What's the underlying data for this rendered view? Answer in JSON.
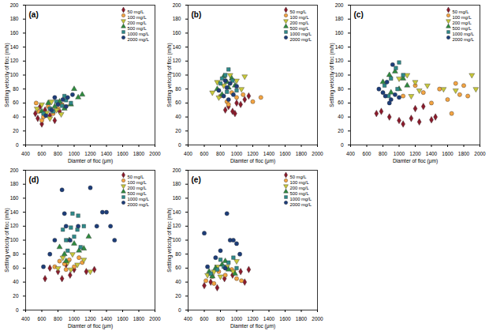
{
  "chart_data": [
    {
      "type": "scatter",
      "title": "(a)",
      "x_label": "Diamter of floc (μm)",
      "y_label": "Settling velocity of floc (m/h)",
      "xlim": [
        400,
        2000
      ],
      "ylim": [
        0,
        200
      ],
      "xticks": [
        400,
        600,
        800,
        1000,
        1200,
        1400,
        1600,
        1800,
        2000
      ],
      "yticks": [
        0,
        20,
        40,
        60,
        80,
        100,
        120,
        140,
        160,
        180,
        200
      ],
      "legend": "top-right",
      "series": [
        {
          "name": "50 mg/L",
          "color": "#8b1a2b",
          "marker": "diamond",
          "x": [
            520,
            550,
            600,
            640,
            700,
            760,
            820,
            580
          ],
          "values": [
            45,
            38,
            30,
            50,
            42,
            35,
            48,
            55
          ]
        },
        {
          "name": "100 mg/L",
          "color": "#f4a442",
          "marker": "circle",
          "x": [
            530,
            560,
            620,
            680,
            740,
            800,
            600,
            850
          ],
          "values": [
            60,
            48,
            40,
            55,
            45,
            52,
            35,
            58
          ]
        },
        {
          "name": "200 mg/L",
          "color": "#c8c83a",
          "marker": "triangle-down",
          "x": [
            540,
            600,
            660,
            720,
            780,
            840,
            900,
            700
          ],
          "values": [
            52,
            58,
            46,
            62,
            50,
            44,
            55,
            38
          ]
        },
        {
          "name": "500 mg/L",
          "color": "#2e8b3e",
          "marker": "triangle",
          "x": [
            600,
            680,
            760,
            820,
            880,
            960,
            1050,
            1100,
            1000
          ],
          "values": [
            48,
            60,
            55,
            62,
            52,
            58,
            68,
            72,
            80
          ]
        },
        {
          "name": "1000 mg/L",
          "color": "#2e8a8a",
          "marker": "square",
          "x": [
            620,
            700,
            780,
            850,
            900,
            960,
            740,
            880
          ],
          "values": [
            45,
            52,
            62,
            56,
            64,
            60,
            48,
            70
          ]
        },
        {
          "name": "2000 mg/L",
          "color": "#1c3d7a",
          "marker": "circle",
          "x": [
            650,
            720,
            800,
            860,
            920,
            980,
            760,
            900
          ],
          "values": [
            42,
            50,
            58,
            65,
            68,
            72,
            68,
            55
          ]
        }
      ]
    },
    {
      "type": "scatter",
      "title": "(b)",
      "x_label": "Diamter of floc (μm)",
      "y_label": "Settling velocity of floc (m/h)",
      "xlim": [
        400,
        2000
      ],
      "ylim": [
        0,
        200
      ],
      "xticks": [
        400,
        600,
        800,
        1000,
        1200,
        1400,
        1600,
        1800,
        2000
      ],
      "yticks": [
        0,
        20,
        40,
        60,
        80,
        100,
        120,
        140,
        160,
        180,
        200
      ],
      "legend": "top-right",
      "series": [
        {
          "name": "50 mg/L",
          "color": "#8b1a2b",
          "marker": "diamond",
          "x": [
            860,
            900,
            950,
            1000,
            1050,
            1100,
            1150,
            980
          ],
          "values": [
            50,
            55,
            48,
            60,
            58,
            65,
            70,
            45
          ]
        },
        {
          "name": "100 mg/L",
          "color": "#f4a442",
          "marker": "circle",
          "x": [
            800,
            880,
            940,
            1000,
            1080,
            1200,
            1300,
            900
          ],
          "values": [
            70,
            62,
            75,
            68,
            72,
            62,
            68,
            58
          ]
        },
        {
          "name": "200 mg/L",
          "color": "#c8c83a",
          "marker": "triangle-down",
          "x": [
            700,
            760,
            840,
            920,
            1000,
            1060,
            1100,
            780
          ],
          "values": [
            75,
            90,
            85,
            100,
            92,
            80,
            98,
            68
          ]
        },
        {
          "name": "500 mg/L",
          "color": "#2e8b3e",
          "marker": "triangle",
          "x": [
            760,
            820,
            880,
            940,
            980,
            840,
            900
          ],
          "values": [
            80,
            72,
            90,
            95,
            85,
            98,
            82
          ]
        },
        {
          "name": "1000 mg/L",
          "color": "#2e8a8a",
          "marker": "square",
          "x": [
            800,
            860,
            900,
            950,
            1000,
            880,
            820
          ],
          "values": [
            88,
            100,
            108,
            92,
            78,
            76,
            95
          ]
        },
        {
          "name": "2000 mg/L",
          "color": "#1c3d7a",
          "marker": "circle",
          "x": [
            780,
            840,
            880,
            920,
            960,
            1000,
            860,
            900
          ],
          "values": [
            78,
            70,
            82,
            88,
            72,
            84,
            92,
            65
          ]
        }
      ]
    },
    {
      "type": "scatter",
      "title": "(c)",
      "x_label": "Diamter of floc (μm)",
      "y_label": "Settling velocity of floc (m/h)",
      "xlim": [
        400,
        2000
      ],
      "ylim": [
        0,
        200
      ],
      "xticks": [
        400,
        600,
        800,
        1000,
        1200,
        1400,
        1600,
        1800,
        2000
      ],
      "yticks": [
        0,
        20,
        40,
        60,
        80,
        100,
        120,
        140,
        160,
        180,
        200
      ],
      "legend": "top-right",
      "series": [
        {
          "name": "50 mg/L",
          "color": "#8b1a2b",
          "marker": "diamond",
          "x": [
            720,
            780,
            880,
            1000,
            1050,
            1150,
            1250,
            1400,
            1450,
            1300,
            1200
          ],
          "values": [
            45,
            48,
            40,
            35,
            30,
            38,
            33,
            36,
            40,
            55,
            52
          ]
        },
        {
          "name": "100 mg/L",
          "color": "#f4a442",
          "marker": "circle",
          "x": [
            1050,
            1200,
            1300,
            1400,
            1500,
            1600,
            1700,
            1750,
            1800,
            1850,
            1650
          ],
          "values": [
            70,
            85,
            75,
            60,
            80,
            65,
            88,
            72,
            85,
            70,
            45
          ]
        },
        {
          "name": "200 mg/L",
          "color": "#c8c83a",
          "marker": "triangle-down",
          "x": [
            1000,
            1100,
            1200,
            1250,
            1350,
            1550,
            1700,
            1900,
            1950,
            1150
          ],
          "values": [
            95,
            100,
            90,
            78,
            85,
            80,
            78,
            100,
            80,
            70
          ]
        },
        {
          "name": "500 mg/L",
          "color": "#2e8b3e",
          "marker": "triangle",
          "x": [
            800,
            880,
            950,
            1000,
            1050,
            1100,
            900
          ],
          "values": [
            90,
            100,
            105,
            80,
            95,
            85,
            75
          ]
        },
        {
          "name": "1000 mg/L",
          "color": "#2e8a8a",
          "marker": "square",
          "x": [
            820,
            900,
            960,
            1000,
            1050,
            980,
            870
          ],
          "values": [
            85,
            95,
            110,
            118,
            100,
            80,
            70
          ]
        },
        {
          "name": "2000 mg/L",
          "color": "#1c3d7a",
          "marker": "circle",
          "x": [
            750,
            800,
            850,
            900,
            950,
            1000,
            920,
            880,
            830
          ],
          "values": [
            80,
            75,
            90,
            65,
            72,
            68,
            115,
            60,
            70
          ]
        }
      ]
    },
    {
      "type": "scatter",
      "title": "(d)",
      "x_label": "Diamter of floc (μm)",
      "y_label": "Settling velocity of floc (m/h)",
      "xlim": [
        400,
        2000
      ],
      "ylim": [
        0,
        200
      ],
      "xticks": [
        400,
        600,
        800,
        1000,
        1200,
        1400,
        1600,
        1800,
        2000
      ],
      "yticks": [
        0,
        20,
        40,
        60,
        80,
        100,
        120,
        140,
        160,
        180,
        200
      ],
      "legend": "top-right",
      "series": [
        {
          "name": "50 mg/L",
          "color": "#8b1a2b",
          "marker": "diamond",
          "x": [
            640,
            700,
            800,
            850,
            950,
            1000,
            1150,
            1250,
            900
          ],
          "values": [
            45,
            60,
            55,
            45,
            50,
            58,
            55,
            58,
            65
          ]
        },
        {
          "name": "100 mg/L",
          "color": "#f4a442",
          "marker": "circle",
          "x": [
            760,
            820,
            880,
            940,
            1000,
            1060,
            1100,
            900
          ],
          "values": [
            62,
            70,
            66,
            72,
            62,
            75,
            68,
            58
          ]
        },
        {
          "name": "200 mg/L",
          "color": "#c8c83a",
          "marker": "triangle-down",
          "x": [
            800,
            860,
            920,
            980,
            1040,
            1120,
            1200,
            960
          ],
          "values": [
            60,
            75,
            68,
            80,
            65,
            72,
            55,
            58
          ]
        },
        {
          "name": "500 mg/L",
          "color": "#2e8b3e",
          "marker": "triangle",
          "x": [
            820,
            880,
            940,
            1000,
            1060,
            1120,
            1180,
            900
          ],
          "values": [
            90,
            80,
            100,
            95,
            85,
            88,
            105,
            70
          ]
        },
        {
          "name": "1000 mg/L",
          "color": "#2e8a8a",
          "marker": "square",
          "x": [
            860,
            900,
            960,
            1000,
            1040,
            1080,
            1120,
            920,
            980,
            1050
          ],
          "values": [
            115,
            100,
            118,
            105,
            115,
            90,
            120,
            85,
            138,
            135
          ]
        },
        {
          "name": "2000 mg/L",
          "color": "#1c3d7a",
          "marker": "circle",
          "x": [
            620,
            700,
            760,
            850,
            880,
            900,
            950,
            1050,
            1200,
            1280,
            1350,
            1400,
            1450,
            1500
          ],
          "values": [
            62,
            80,
            100,
            172,
            138,
            120,
            100,
            120,
            175,
            120,
            140,
            140,
            120,
            100
          ]
        }
      ]
    },
    {
      "type": "scatter",
      "title": "(e)",
      "x_label": "Diamter of floc (μm)",
      "y_label": "Settling velocity of floc (m/h)",
      "xlim": [
        400,
        2000
      ],
      "ylim": [
        0,
        200
      ],
      "xticks": [
        400,
        600,
        800,
        1000,
        1200,
        1400,
        1600,
        1800,
        2000
      ],
      "yticks": [
        0,
        20,
        40,
        60,
        80,
        100,
        120,
        140,
        160,
        180,
        200
      ],
      "legend": "top-right",
      "series": [
        {
          "name": "50 mg/L",
          "color": "#8b1a2b",
          "marker": "diamond",
          "x": [
            600,
            680,
            760,
            850,
            950,
            1050,
            1150,
            1100
          ],
          "values": [
            35,
            40,
            32,
            45,
            50,
            55,
            58,
            40
          ]
        },
        {
          "name": "100 mg/L",
          "color": "#f4a442",
          "marker": "circle",
          "x": [
            620,
            700,
            780,
            860,
            940,
            1000,
            1060,
            720
          ],
          "values": [
            42,
            48,
            55,
            50,
            58,
            45,
            42,
            38
          ]
        },
        {
          "name": "200 mg/L",
          "color": "#c8c83a",
          "marker": "triangle-down",
          "x": [
            640,
            720,
            800,
            880,
            960,
            1000,
            760
          ],
          "values": [
            50,
            55,
            48,
            62,
            55,
            70,
            62
          ]
        },
        {
          "name": "500 mg/L",
          "color": "#2e8b3e",
          "marker": "triangle",
          "x": [
            660,
            740,
            820,
            900,
            980,
            860,
            700
          ],
          "values": [
            55,
            60,
            65,
            58,
            52,
            70,
            48
          ]
        },
        {
          "name": "1000 mg/L",
          "color": "#2e8a8a",
          "marker": "square",
          "x": [
            680,
            760,
            840,
            900,
            960,
            1000,
            800
          ],
          "values": [
            52,
            58,
            62,
            68,
            75,
            60,
            72
          ]
        },
        {
          "name": "2000 mg/L",
          "color": "#1c3d7a",
          "marker": "circle",
          "x": [
            600,
            640,
            740,
            800,
            880,
            920,
            960,
            1000,
            1040,
            860
          ],
          "values": [
            110,
            62,
            75,
            85,
            138,
            100,
            100,
            95,
            80,
            60
          ]
        }
      ]
    }
  ]
}
